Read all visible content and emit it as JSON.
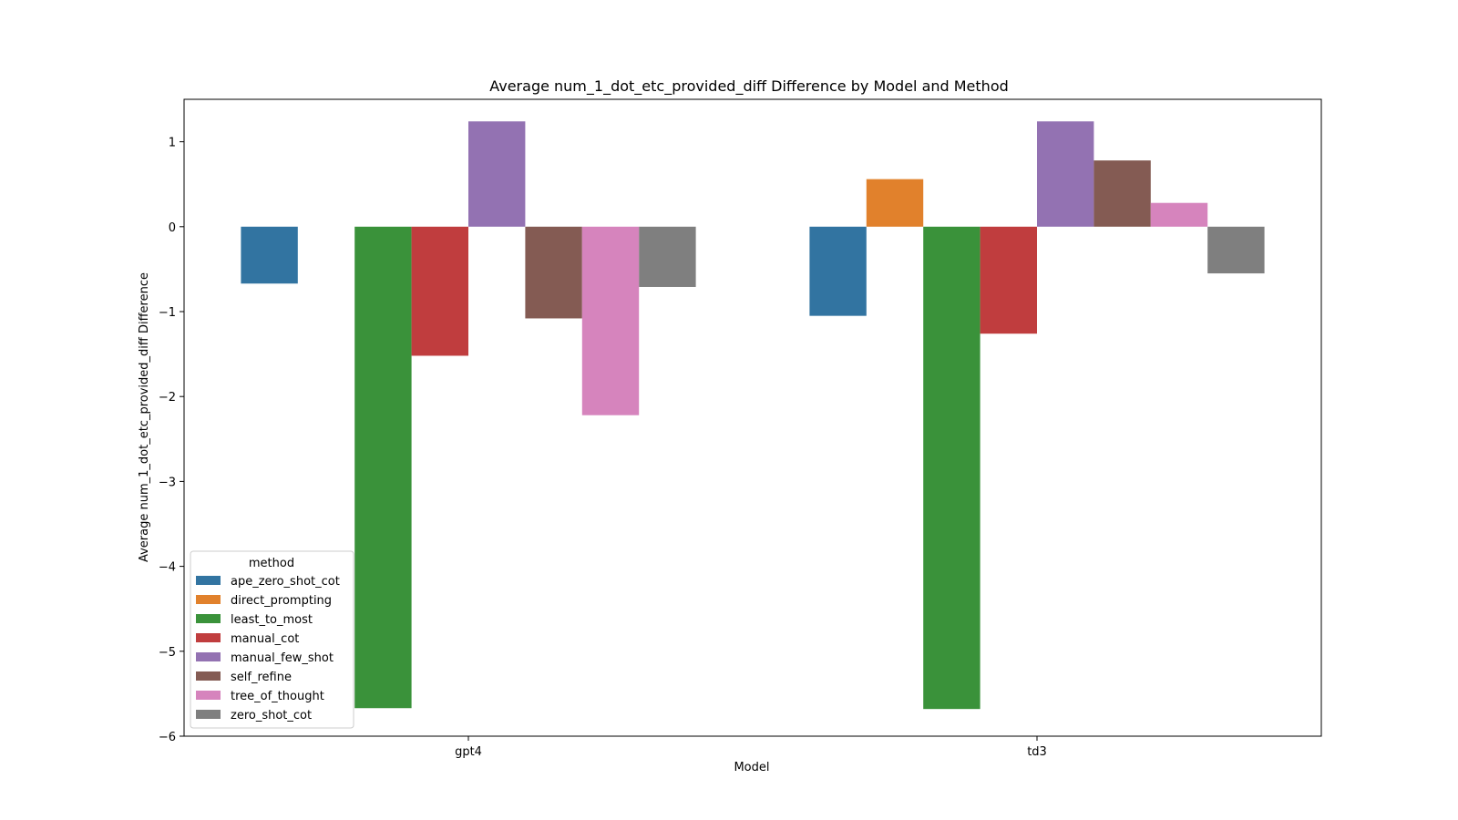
{
  "chart_data": {
    "type": "bar",
    "title": "Average num_1_dot_etc_provided_diff Difference by Model and Method",
    "xlabel": "Model",
    "ylabel": "Average num_1_dot_etc_provided_diff Difference",
    "categories": [
      "gpt4",
      "td3"
    ],
    "ylim": [
      -6.0,
      1.5
    ],
    "yticks": [
      1,
      0,
      -1,
      -2,
      -3,
      -4,
      -5,
      -6
    ],
    "ytick_labels": [
      "1",
      "0",
      "−1",
      "−2",
      "−3",
      "−4",
      "−5",
      "−6"
    ],
    "grid": false,
    "legend": {
      "title": "method",
      "placement": "lower-left"
    },
    "series": [
      {
        "name": "ape_zero_shot_cot",
        "color": "#3274a1",
        "values": [
          -0.67,
          -1.05
        ]
      },
      {
        "name": "direct_prompting",
        "color": "#e1812c",
        "values": [
          0,
          0.56
        ]
      },
      {
        "name": "least_to_most",
        "color": "#3a923a",
        "values": [
          -5.67,
          -5.68
        ]
      },
      {
        "name": "manual_cot",
        "color": "#c03d3e",
        "values": [
          -1.52,
          -1.26
        ]
      },
      {
        "name": "manual_few_shot",
        "color": "#9372b2",
        "values": [
          1.24,
          1.24
        ]
      },
      {
        "name": "self_refine",
        "color": "#845b53",
        "values": [
          -1.08,
          0.78
        ]
      },
      {
        "name": "tree_of_thought",
        "color": "#d684bd",
        "values": [
          -2.22,
          0.28
        ]
      },
      {
        "name": "zero_shot_cot",
        "color": "#7f7f7f",
        "values": [
          -0.71,
          -0.55
        ]
      }
    ]
  }
}
